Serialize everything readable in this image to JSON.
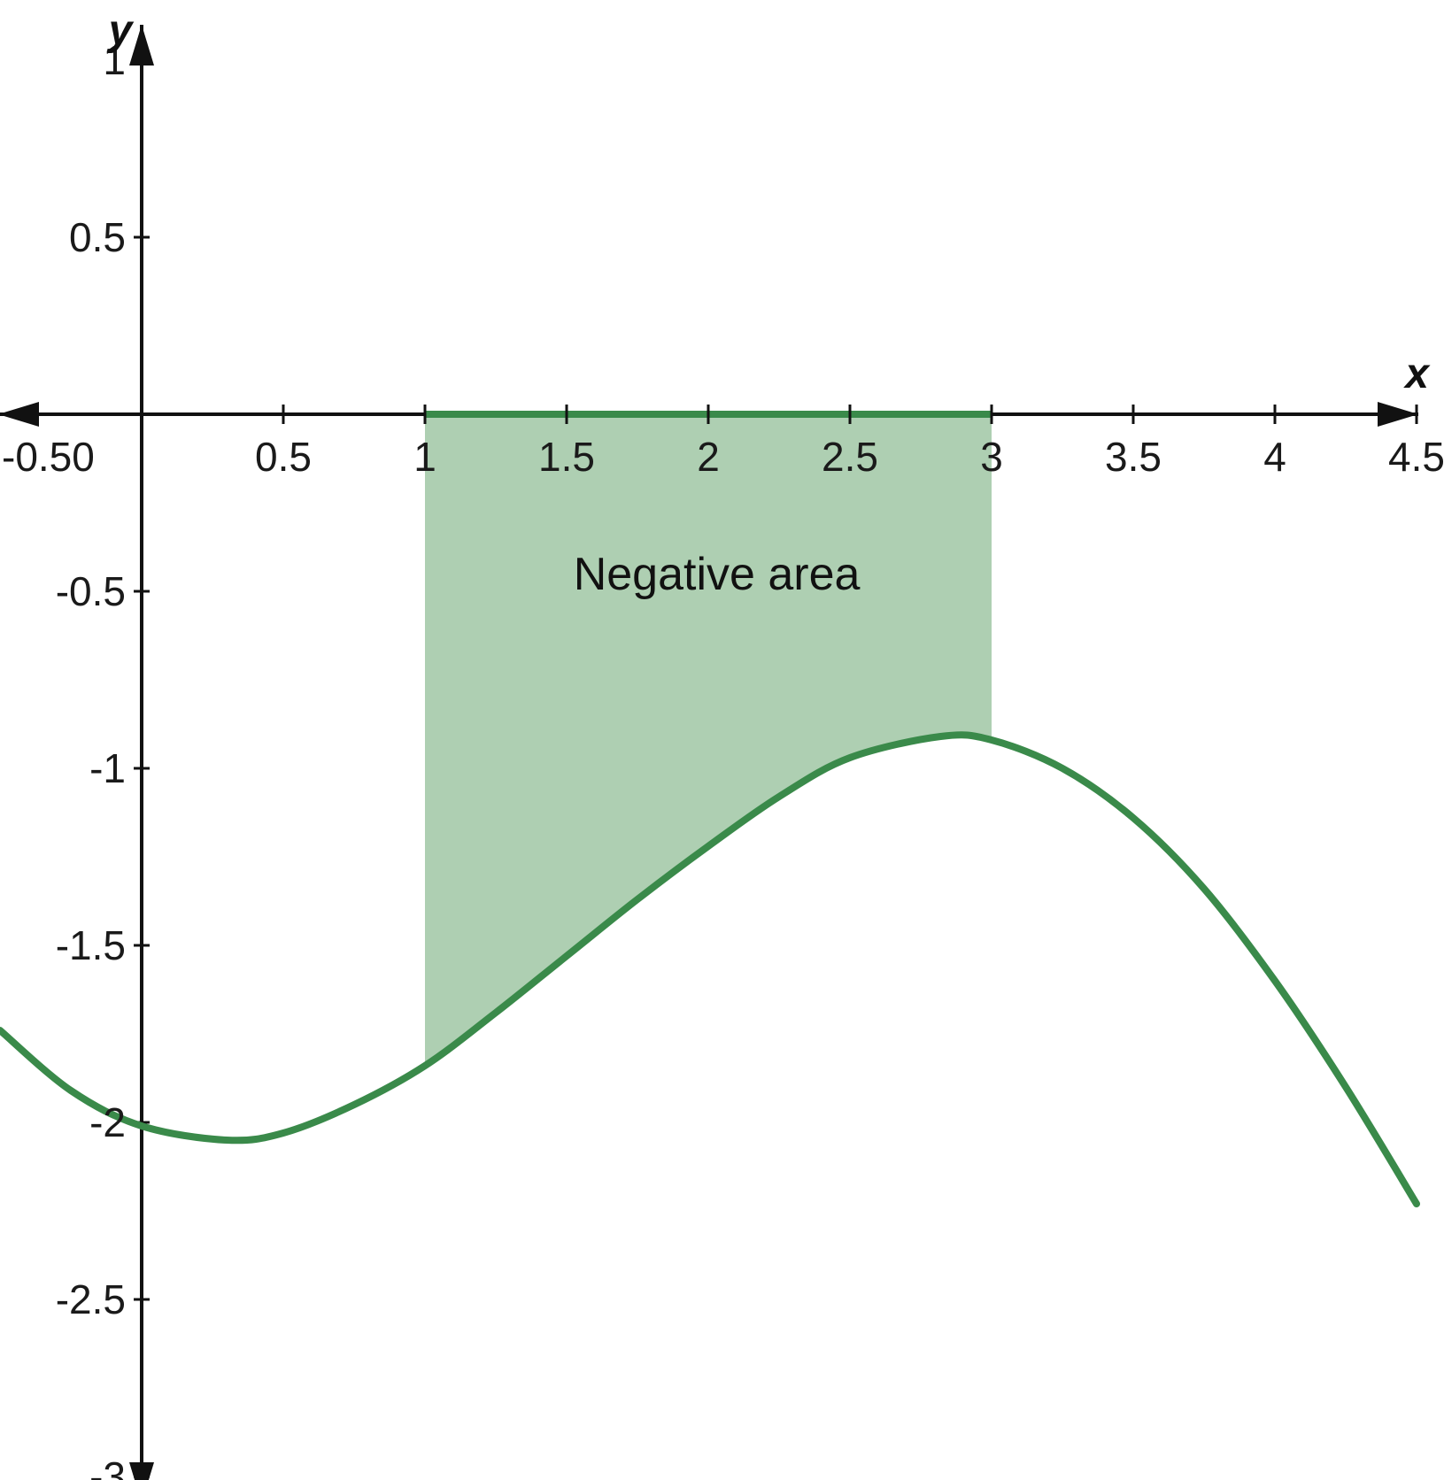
{
  "chart_data": {
    "type": "area",
    "title": "",
    "xlabel": "x",
    "ylabel": "y",
    "xlim": [
      -0.5,
      4.5
    ],
    "ylim": [
      -3,
      1
    ],
    "x_ticks": [
      -0.5,
      0.5,
      1,
      1.5,
      2,
      2.5,
      3,
      3.5,
      4,
      4.5
    ],
    "x_tick_labels": [
      "-0.50",
      "0.5",
      "1",
      "1.5",
      "2",
      "2.5",
      "3",
      "3.5",
      "4",
      "4.5"
    ],
    "y_ticks": [
      1,
      0.5,
      -0.5,
      -1,
      -1.5,
      -2,
      -2.5,
      -3
    ],
    "y_tick_labels": [
      "1",
      "0.5",
      "-0.5",
      "-1",
      "-1.5",
      "-2",
      "-2.5",
      "-3"
    ],
    "grid": false,
    "series": [
      {
        "x": [
          -0.5,
          -0.25,
          0,
          0.3,
          0.5,
          0.75,
          1,
          1.25,
          1.5,
          1.75,
          2,
          2.25,
          2.5,
          2.82,
          3,
          3.25,
          3.5,
          3.75,
          4,
          4.25,
          4.5
        ],
        "y": [
          -1.74,
          -1.91,
          -2.01,
          -2.05,
          -2.03,
          -1.95,
          -1.84,
          -1.69,
          -1.53,
          -1.37,
          -1.22,
          -1.08,
          -0.97,
          -0.91,
          -0.92,
          -1.0,
          -1.14,
          -1.34,
          -1.6,
          -1.9,
          -2.23
        ],
        "color": "#3a8a4a"
      }
    ],
    "shaded_region": {
      "x_range": [
        1,
        3
      ],
      "between": "curve and x-axis",
      "fill_color": "#aecfb2",
      "edge_color": "#3a8a4a"
    },
    "annotations": [
      {
        "text": "Negative area",
        "x": 2.03,
        "y": -0.45
      }
    ]
  }
}
